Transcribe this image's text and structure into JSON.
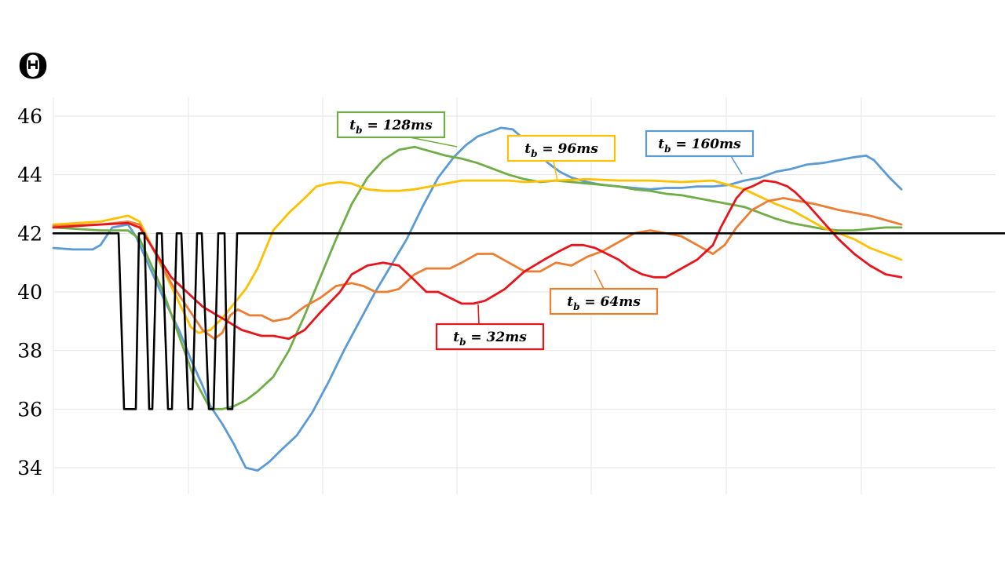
{
  "chart_data": {
    "type": "line",
    "ylabel": "Θ",
    "ylim": [
      33.5,
      46.7
    ],
    "xlim": [
      0,
      1261
    ],
    "yticks": [
      34,
      36,
      38,
      40,
      42,
      44,
      46
    ],
    "grid": true,
    "series": [
      {
        "name": "",
        "color": "#000000",
        "x": [
          0,
          75,
          83,
          90,
          97,
          105,
          109,
          116,
          122,
          126,
          132,
          138,
          146,
          151,
          157,
          163,
          172,
          177,
          183,
          189,
          198,
          204,
          210,
          218,
          222,
          228,
          234,
          1261
        ],
        "values": [
          42.0,
          42.0,
          42.0,
          36.0,
          36.0,
          36.0,
          42.0,
          42.0,
          36.0,
          36.0,
          42.0,
          42.0,
          36.0,
          36.0,
          42.0,
          42.0,
          36.0,
          36.0,
          42.0,
          42.0,
          36.0,
          36.0,
          42.0,
          42.0,
          36.0,
          36.0,
          42.0,
          42.0
        ]
      },
      {
        "name": "tb = 32ms",
        "color": "#e8141b",
        "x": [
          0,
          60,
          95,
          110,
          150,
          190,
          240,
          265,
          280,
          300,
          320,
          340,
          365,
          380,
          400,
          420,
          440,
          460,
          475,
          490,
          505,
          520,
          535,
          550,
          575,
          600,
          625,
          645,
          660,
          675,
          690,
          705,
          720,
          735,
          750,
          765,
          780,
          800,
          820,
          840,
          850,
          860,
          870,
          880,
          890,
          905,
          920,
          935,
          945,
          960,
          980,
          1000,
          1020,
          1040,
          1060,
          1080
        ],
        "values": [
          42.2,
          42.3,
          42.35,
          42.2,
          40.5,
          39.5,
          38.7,
          38.5,
          38.5,
          38.4,
          38.7,
          39.3,
          40.0,
          40.6,
          40.9,
          41.0,
          40.9,
          40.4,
          40.0,
          40.0,
          39.8,
          39.6,
          39.6,
          39.7,
          40.1,
          40.7,
          41.1,
          41.4,
          41.6,
          41.6,
          41.5,
          41.3,
          41.1,
          40.8,
          40.6,
          40.5,
          40.5,
          40.8,
          41.1,
          41.6,
          42.2,
          42.7,
          43.2,
          43.5,
          43.6,
          43.8,
          43.75,
          43.6,
          43.4,
          43.0,
          42.4,
          41.8,
          41.3,
          40.9,
          40.6,
          40.5
        ]
      },
      {
        "name": "tb = 64ms",
        "color": "#ed7d31",
        "x": [
          0,
          60,
          95,
          110,
          150,
          190,
          205,
          215,
          225,
          235,
          250,
          265,
          280,
          300,
          320,
          340,
          360,
          380,
          395,
          410,
          425,
          440,
          460,
          475,
          490,
          505,
          520,
          540,
          560,
          580,
          600,
          620,
          640,
          660,
          680,
          700,
          720,
          740,
          760,
          780,
          800,
          820,
          840,
          855,
          870,
          890,
          910,
          930,
          950,
          970,
          1000,
          1040,
          1080
        ],
        "values": [
          42.25,
          42.3,
          42.4,
          42.3,
          40.3,
          38.7,
          38.4,
          38.6,
          39.2,
          39.4,
          39.2,
          39.2,
          39.0,
          39.1,
          39.5,
          39.8,
          40.2,
          40.3,
          40.2,
          40.0,
          40.0,
          40.1,
          40.6,
          40.8,
          40.8,
          40.8,
          41.0,
          41.3,
          41.3,
          41.0,
          40.7,
          40.7,
          41.0,
          40.9,
          41.2,
          41.4,
          41.7,
          42.0,
          42.1,
          42.0,
          41.9,
          41.6,
          41.3,
          41.6,
          42.2,
          42.8,
          43.1,
          43.2,
          43.1,
          43.0,
          42.8,
          42.6,
          42.3
        ]
      },
      {
        "name": "tb = 96ms",
        "color": "#ffc000",
        "x": [
          0,
          60,
          95,
          110,
          150,
          175,
          185,
          200,
          215,
          230,
          245,
          260,
          280,
          300,
          320,
          335,
          350,
          365,
          380,
          400,
          420,
          440,
          460,
          480,
          500,
          520,
          540,
          560,
          580,
          600,
          640,
          680,
          720,
          760,
          800,
          840,
          880,
          920,
          940,
          960,
          980,
          1000,
          1020,
          1040,
          1060,
          1080
        ],
        "values": [
          42.3,
          42.4,
          42.6,
          42.4,
          40.2,
          38.8,
          38.6,
          38.7,
          39.1,
          39.6,
          40.1,
          40.8,
          42.1,
          42.7,
          43.2,
          43.6,
          43.7,
          43.75,
          43.7,
          43.5,
          43.45,
          43.45,
          43.5,
          43.6,
          43.7,
          43.8,
          43.8,
          43.8,
          43.8,
          43.75,
          43.8,
          43.85,
          43.8,
          43.8,
          43.75,
          43.8,
          43.5,
          43.0,
          42.8,
          42.5,
          42.2,
          42.0,
          41.8,
          41.5,
          41.3,
          41.1
        ]
      },
      {
        "name": "tb = 128ms",
        "color": "#70ad47",
        "x": [
          0,
          60,
          95,
          110,
          140,
          160,
          180,
          200,
          215,
          230,
          245,
          260,
          280,
          300,
          320,
          340,
          360,
          380,
          400,
          420,
          440,
          460,
          480,
          500,
          520,
          540,
          560,
          580,
          600,
          620,
          640,
          660,
          680,
          700,
          720,
          740,
          760,
          780,
          800,
          820,
          840,
          860,
          880,
          900,
          920,
          940,
          960,
          980,
          1000,
          1020,
          1040,
          1060,
          1080
        ],
        "values": [
          42.2,
          42.1,
          42.1,
          41.8,
          40.0,
          38.5,
          37.0,
          36.0,
          36.0,
          36.1,
          36.3,
          36.6,
          37.1,
          38.0,
          39.2,
          40.5,
          41.8,
          43.0,
          43.9,
          44.5,
          44.85,
          44.95,
          44.8,
          44.65,
          44.55,
          44.4,
          44.2,
          44.0,
          43.85,
          43.75,
          43.8,
          43.75,
          43.7,
          43.65,
          43.6,
          43.5,
          43.45,
          43.35,
          43.3,
          43.2,
          43.1,
          43.0,
          42.9,
          42.7,
          42.5,
          42.35,
          42.25,
          42.15,
          42.1,
          42.1,
          42.15,
          42.2,
          42.2
        ]
      },
      {
        "name": "tb = 160ms",
        "color": "#5b9bd5",
        "x": [
          0,
          25,
          50,
          60,
          75,
          95,
          105,
          120,
          140,
          160,
          175,
          190,
          200,
          215,
          230,
          245,
          260,
          275,
          290,
          310,
          330,
          350,
          370,
          390,
          410,
          430,
          450,
          470,
          490,
          510,
          525,
          540,
          555,
          570,
          585,
          600,
          615,
          630,
          645,
          660,
          680,
          700,
          720,
          740,
          760,
          780,
          800,
          820,
          840,
          860,
          880,
          900,
          920,
          940,
          960,
          980,
          1000,
          1020,
          1035,
          1045,
          1055,
          1065,
          1080
        ],
        "values": [
          41.5,
          41.45,
          41.45,
          41.6,
          42.2,
          42.3,
          41.9,
          41.0,
          39.8,
          38.7,
          37.7,
          36.8,
          36.1,
          35.5,
          34.8,
          34.0,
          33.9,
          34.2,
          34.6,
          35.1,
          35.9,
          36.9,
          38.0,
          39.0,
          40.0,
          40.9,
          41.8,
          42.9,
          43.9,
          44.6,
          45.0,
          45.3,
          45.45,
          45.6,
          45.55,
          45.2,
          44.8,
          44.4,
          44.1,
          43.9,
          43.75,
          43.65,
          43.6,
          43.55,
          43.5,
          43.55,
          43.55,
          43.6,
          43.6,
          43.65,
          43.8,
          43.9,
          44.1,
          44.2,
          44.35,
          44.4,
          44.5,
          44.6,
          44.65,
          44.5,
          44.2,
          43.9,
          43.5
        ]
      }
    ],
    "annotations": [
      {
        "series": "tb = 32ms",
        "text_var": "t",
        "text_sub": "b",
        "text_rest": " = 32ms",
        "box_color": "#e8141b",
        "at_x": 558,
        "at_y": 39.6
      },
      {
        "series": "tb = 64ms",
        "text_var": "t",
        "text_sub": "b",
        "text_rest": " = 64ms",
        "box_color": "#ed7d31",
        "at_x": 695,
        "at_y": 40.6
      },
      {
        "series": "tb = 96ms",
        "text_var": "t",
        "text_sub": "b",
        "text_rest": " = 96ms",
        "box_color": "#ffc000",
        "at_x": 643,
        "at_y": 43.8
      },
      {
        "series": "tb = 128ms",
        "text_var": "t",
        "text_sub": "b",
        "text_rest": " = 128ms",
        "box_color": "#70ad47",
        "at_x": 468,
        "at_y": 44.9
      },
      {
        "series": "tb = 160ms",
        "text_var": "t",
        "text_sub": "b",
        "text_rest": " = 160ms",
        "box_color": "#5b9bd5",
        "at_x": 880,
        "at_y": 43.9
      }
    ]
  }
}
